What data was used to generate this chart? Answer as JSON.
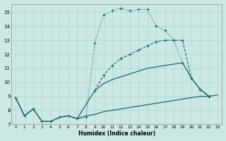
{
  "xlabel": "Humidex (Indice chaleur)",
  "xlim": [
    -0.5,
    23.5
  ],
  "ylim": [
    7,
    15.6
  ],
  "yticks": [
    7,
    8,
    9,
    10,
    11,
    12,
    13,
    14,
    15
  ],
  "xticks": [
    0,
    1,
    2,
    3,
    4,
    5,
    6,
    7,
    8,
    9,
    10,
    11,
    12,
    13,
    14,
    15,
    16,
    17,
    18,
    19,
    20,
    21,
    22,
    23
  ],
  "bg_color": "#cce8e4",
  "grid_color": "#aad4d0",
  "line_color": "#1a6b60",
  "series1_x": [
    0,
    1,
    2,
    3,
    4,
    5,
    6,
    7,
    8,
    9,
    10,
    11,
    12,
    13,
    14,
    15,
    16,
    17,
    18,
    19,
    20,
    21,
    22,
    23
  ],
  "series1_y": [
    8.9,
    7.6,
    8.1,
    7.2,
    7.2,
    7.5,
    7.6,
    7.4,
    7.6,
    7.7,
    7.9,
    8.0,
    8.1,
    8.2,
    8.3,
    8.4,
    8.5,
    8.6,
    8.7,
    8.8,
    8.9,
    9.0,
    9.0,
    9.1
  ],
  "series2_x": [
    0,
    1,
    2,
    3,
    4,
    5,
    6,
    7,
    8,
    9,
    10,
    11,
    12,
    13,
    14,
    15,
    16,
    17,
    18,
    19,
    20,
    21,
    22
  ],
  "series2_y": [
    8.9,
    7.6,
    8.1,
    7.2,
    7.2,
    7.5,
    7.6,
    7.4,
    8.4,
    9.4,
    9.9,
    10.2,
    10.4,
    10.6,
    10.8,
    11.0,
    11.1,
    11.2,
    11.3,
    11.4,
    10.3,
    9.5,
    9.0
  ],
  "series3_x": [
    0,
    1,
    2,
    3,
    4,
    5,
    6,
    7,
    8,
    9,
    10,
    11,
    12,
    13,
    14,
    15,
    16,
    17,
    18,
    19,
    20,
    21,
    22
  ],
  "series3_y": [
    8.9,
    7.6,
    8.1,
    7.2,
    7.2,
    7.5,
    7.6,
    7.4,
    7.5,
    12.8,
    14.8,
    15.1,
    15.3,
    15.1,
    15.2,
    15.2,
    14.0,
    13.7,
    13.0,
    11.4,
    10.3,
    9.5,
    9.0
  ],
  "series4_x": [
    9,
    10,
    11,
    12,
    13,
    14,
    15,
    16,
    17,
    18,
    19,
    20,
    21,
    22
  ],
  "series4_y": [
    9.4,
    10.5,
    11.2,
    11.7,
    12.0,
    12.3,
    12.6,
    12.9,
    13.0,
    13.0,
    13.0,
    10.3,
    9.5,
    9.0
  ]
}
